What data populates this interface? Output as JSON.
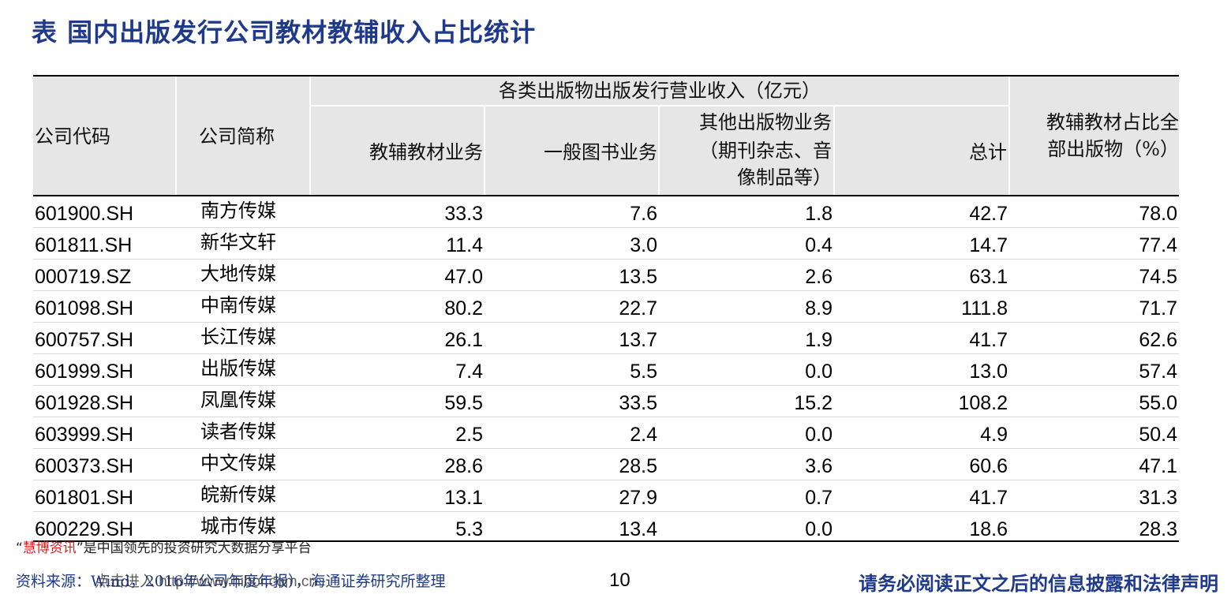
{
  "title": "表 国内出版发行公司教材教辅收入占比统计",
  "headers": {
    "code": "公司代码",
    "name": "公司简称",
    "group": "各类出版物出版发行营业收入（亿元）",
    "textbook": "教辅教材业务",
    "general": "一般图书业务",
    "other_line1": "其他出版物业务",
    "other_line2": "（期刊杂志、音",
    "other_line3": "像制品等）",
    "total": "总计",
    "ratio_line1": "教辅教材占比全",
    "ratio_line2": "部出版物（%）"
  },
  "rows": [
    {
      "code": "601900.SH",
      "name": "南方传媒",
      "textbook": "33.3",
      "general": "7.6",
      "other": "1.8",
      "total": "42.7",
      "ratio": "78.0"
    },
    {
      "code": "601811.SH",
      "name": "新华文轩",
      "textbook": "11.4",
      "general": "3.0",
      "other": "0.4",
      "total": "14.7",
      "ratio": "77.4"
    },
    {
      "code": "000719.SZ",
      "name": "大地传媒",
      "textbook": "47.0",
      "general": "13.5",
      "other": "2.6",
      "total": "63.1",
      "ratio": "74.5"
    },
    {
      "code": "601098.SH",
      "name": "中南传媒",
      "textbook": "80.2",
      "general": "22.7",
      "other": "8.9",
      "total": "111.8",
      "ratio": "71.7"
    },
    {
      "code": "600757.SH",
      "name": "长江传媒",
      "textbook": "26.1",
      "general": "13.7",
      "other": "1.9",
      "total": "41.7",
      "ratio": "62.6"
    },
    {
      "code": "601999.SH",
      "name": "出版传媒",
      "textbook": "7.4",
      "general": "5.5",
      "other": "0.0",
      "total": "13.0",
      "ratio": "57.4"
    },
    {
      "code": "601928.SH",
      "name": "凤凰传媒",
      "textbook": "59.5",
      "general": "33.5",
      "other": "15.2",
      "total": "108.2",
      "ratio": "55.0"
    },
    {
      "code": "603999.SH",
      "name": "读者传媒",
      "textbook": "2.5",
      "general": "2.4",
      "other": "0.0",
      "total": "4.9",
      "ratio": "50.4"
    },
    {
      "code": "600373.SH",
      "name": "中文传媒",
      "textbook": "28.6",
      "general": "28.5",
      "other": "3.6",
      "total": "60.6",
      "ratio": "47.1"
    },
    {
      "code": "601801.SH",
      "name": "皖新传媒",
      "textbook": "13.1",
      "general": "27.9",
      "other": "0.7",
      "total": "41.7",
      "ratio": "31.3"
    },
    {
      "code": "600229.SH",
      "name": "城市传媒",
      "textbook": "5.3",
      "general": "13.4",
      "other": "0.0",
      "total": "18.6",
      "ratio": "28.3"
    }
  ],
  "promo": {
    "quote_open": "“",
    "brand": "慧博资讯",
    "quote_close": "”",
    "text": "是中国领先的投资研究大数据分享平台"
  },
  "source": "资料来源：Wind，2016年公司年度年报），海通证券研究所整理",
  "watermark": "点击进入 http://www.hibor.com.cn",
  "page_number": "10",
  "disclaimer": "请务必阅读正文之后的信息披露和法律声明"
}
